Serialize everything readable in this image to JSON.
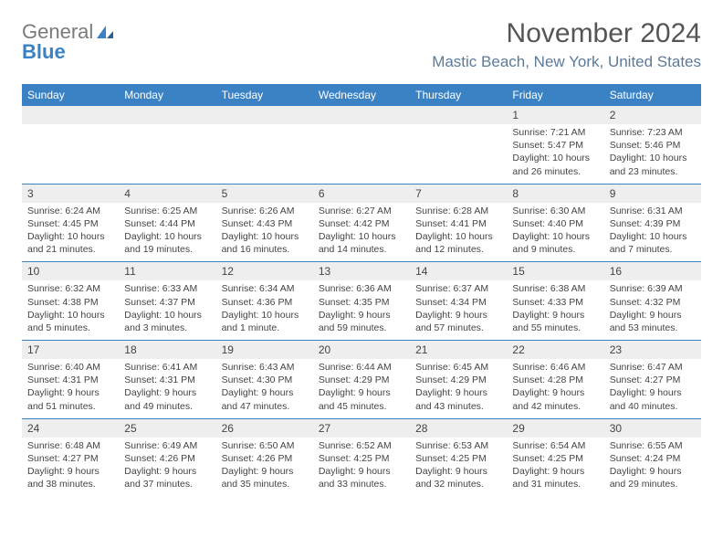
{
  "brand": {
    "part1": "General",
    "part2": "Blue"
  },
  "title": "November 2024",
  "location": "Mastic Beach, New York, United States",
  "colors": {
    "header_bg": "#3b82c4",
    "header_fg": "#ffffff",
    "daynum_bg": "#eeeeee",
    "text": "#444444",
    "location": "#5b7a9a",
    "title": "#555555",
    "row_sep": "#3b82c4"
  },
  "layout": {
    "type": "calendar-table",
    "columns": 7,
    "weeks": 5,
    "font_family": "Arial",
    "header_fontsize": 12,
    "daynum_fontsize": 12,
    "body_fontsize": 10.5,
    "title_fontsize": 30,
    "location_fontsize": 17
  },
  "day_headers": [
    "Sunday",
    "Monday",
    "Tuesday",
    "Wednesday",
    "Thursday",
    "Friday",
    "Saturday"
  ],
  "weeks": [
    [
      null,
      null,
      null,
      null,
      null,
      {
        "n": "1",
        "sr": "Sunrise: 7:21 AM",
        "ss": "Sunset: 5:47 PM",
        "d1": "Daylight: 10 hours",
        "d2": "and 26 minutes."
      },
      {
        "n": "2",
        "sr": "Sunrise: 7:23 AM",
        "ss": "Sunset: 5:46 PM",
        "d1": "Daylight: 10 hours",
        "d2": "and 23 minutes."
      }
    ],
    [
      {
        "n": "3",
        "sr": "Sunrise: 6:24 AM",
        "ss": "Sunset: 4:45 PM",
        "d1": "Daylight: 10 hours",
        "d2": "and 21 minutes."
      },
      {
        "n": "4",
        "sr": "Sunrise: 6:25 AM",
        "ss": "Sunset: 4:44 PM",
        "d1": "Daylight: 10 hours",
        "d2": "and 19 minutes."
      },
      {
        "n": "5",
        "sr": "Sunrise: 6:26 AM",
        "ss": "Sunset: 4:43 PM",
        "d1": "Daylight: 10 hours",
        "d2": "and 16 minutes."
      },
      {
        "n": "6",
        "sr": "Sunrise: 6:27 AM",
        "ss": "Sunset: 4:42 PM",
        "d1": "Daylight: 10 hours",
        "d2": "and 14 minutes."
      },
      {
        "n": "7",
        "sr": "Sunrise: 6:28 AM",
        "ss": "Sunset: 4:41 PM",
        "d1": "Daylight: 10 hours",
        "d2": "and 12 minutes."
      },
      {
        "n": "8",
        "sr": "Sunrise: 6:30 AM",
        "ss": "Sunset: 4:40 PM",
        "d1": "Daylight: 10 hours",
        "d2": "and 9 minutes."
      },
      {
        "n": "9",
        "sr": "Sunrise: 6:31 AM",
        "ss": "Sunset: 4:39 PM",
        "d1": "Daylight: 10 hours",
        "d2": "and 7 minutes."
      }
    ],
    [
      {
        "n": "10",
        "sr": "Sunrise: 6:32 AM",
        "ss": "Sunset: 4:38 PM",
        "d1": "Daylight: 10 hours",
        "d2": "and 5 minutes."
      },
      {
        "n": "11",
        "sr": "Sunrise: 6:33 AM",
        "ss": "Sunset: 4:37 PM",
        "d1": "Daylight: 10 hours",
        "d2": "and 3 minutes."
      },
      {
        "n": "12",
        "sr": "Sunrise: 6:34 AM",
        "ss": "Sunset: 4:36 PM",
        "d1": "Daylight: 10 hours",
        "d2": "and 1 minute."
      },
      {
        "n": "13",
        "sr": "Sunrise: 6:36 AM",
        "ss": "Sunset: 4:35 PM",
        "d1": "Daylight: 9 hours",
        "d2": "and 59 minutes."
      },
      {
        "n": "14",
        "sr": "Sunrise: 6:37 AM",
        "ss": "Sunset: 4:34 PM",
        "d1": "Daylight: 9 hours",
        "d2": "and 57 minutes."
      },
      {
        "n": "15",
        "sr": "Sunrise: 6:38 AM",
        "ss": "Sunset: 4:33 PM",
        "d1": "Daylight: 9 hours",
        "d2": "and 55 minutes."
      },
      {
        "n": "16",
        "sr": "Sunrise: 6:39 AM",
        "ss": "Sunset: 4:32 PM",
        "d1": "Daylight: 9 hours",
        "d2": "and 53 minutes."
      }
    ],
    [
      {
        "n": "17",
        "sr": "Sunrise: 6:40 AM",
        "ss": "Sunset: 4:31 PM",
        "d1": "Daylight: 9 hours",
        "d2": "and 51 minutes."
      },
      {
        "n": "18",
        "sr": "Sunrise: 6:41 AM",
        "ss": "Sunset: 4:31 PM",
        "d1": "Daylight: 9 hours",
        "d2": "and 49 minutes."
      },
      {
        "n": "19",
        "sr": "Sunrise: 6:43 AM",
        "ss": "Sunset: 4:30 PM",
        "d1": "Daylight: 9 hours",
        "d2": "and 47 minutes."
      },
      {
        "n": "20",
        "sr": "Sunrise: 6:44 AM",
        "ss": "Sunset: 4:29 PM",
        "d1": "Daylight: 9 hours",
        "d2": "and 45 minutes."
      },
      {
        "n": "21",
        "sr": "Sunrise: 6:45 AM",
        "ss": "Sunset: 4:29 PM",
        "d1": "Daylight: 9 hours",
        "d2": "and 43 minutes."
      },
      {
        "n": "22",
        "sr": "Sunrise: 6:46 AM",
        "ss": "Sunset: 4:28 PM",
        "d1": "Daylight: 9 hours",
        "d2": "and 42 minutes."
      },
      {
        "n": "23",
        "sr": "Sunrise: 6:47 AM",
        "ss": "Sunset: 4:27 PM",
        "d1": "Daylight: 9 hours",
        "d2": "and 40 minutes."
      }
    ],
    [
      {
        "n": "24",
        "sr": "Sunrise: 6:48 AM",
        "ss": "Sunset: 4:27 PM",
        "d1": "Daylight: 9 hours",
        "d2": "and 38 minutes."
      },
      {
        "n": "25",
        "sr": "Sunrise: 6:49 AM",
        "ss": "Sunset: 4:26 PM",
        "d1": "Daylight: 9 hours",
        "d2": "and 37 minutes."
      },
      {
        "n": "26",
        "sr": "Sunrise: 6:50 AM",
        "ss": "Sunset: 4:26 PM",
        "d1": "Daylight: 9 hours",
        "d2": "and 35 minutes."
      },
      {
        "n": "27",
        "sr": "Sunrise: 6:52 AM",
        "ss": "Sunset: 4:25 PM",
        "d1": "Daylight: 9 hours",
        "d2": "and 33 minutes."
      },
      {
        "n": "28",
        "sr": "Sunrise: 6:53 AM",
        "ss": "Sunset: 4:25 PM",
        "d1": "Daylight: 9 hours",
        "d2": "and 32 minutes."
      },
      {
        "n": "29",
        "sr": "Sunrise: 6:54 AM",
        "ss": "Sunset: 4:25 PM",
        "d1": "Daylight: 9 hours",
        "d2": "and 31 minutes."
      },
      {
        "n": "30",
        "sr": "Sunrise: 6:55 AM",
        "ss": "Sunset: 4:24 PM",
        "d1": "Daylight: 9 hours",
        "d2": "and 29 minutes."
      }
    ]
  ]
}
